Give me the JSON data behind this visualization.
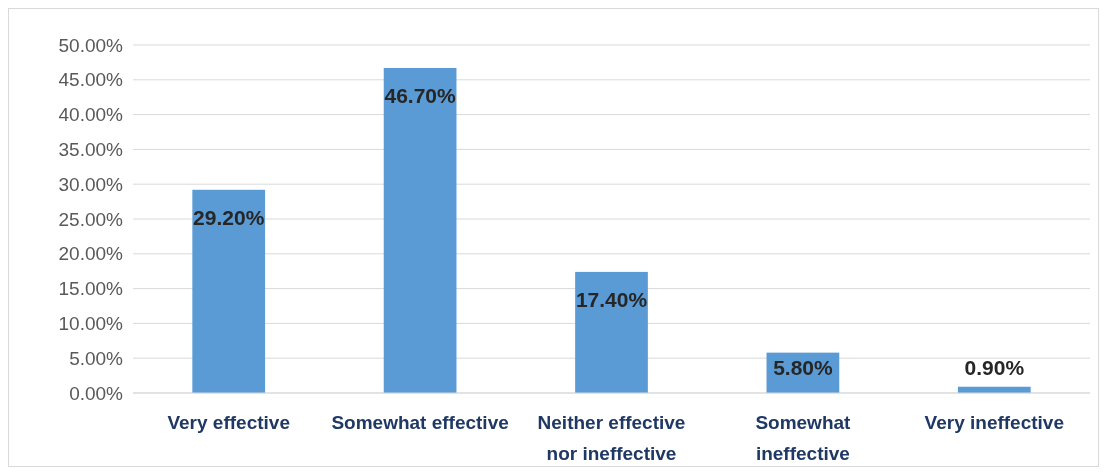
{
  "chart_data": {
    "type": "bar",
    "categories": [
      "Very effective",
      "Somewhat effective",
      "Neither effective nor ineffective",
      "Somewhat ineffective",
      "Very ineffective"
    ],
    "values": [
      29.2,
      46.7,
      17.4,
      5.8,
      0.9
    ],
    "value_labels": [
      "29.20%",
      "46.70%",
      "17.40%",
      "5.80%",
      "0.90%"
    ],
    "color": "#5b9bd5",
    "ylim": [
      0,
      50
    ],
    "yticks": [
      {
        "value": 0,
        "label": "0.00%"
      },
      {
        "value": 5,
        "label": "5.00%"
      },
      {
        "value": 10,
        "label": "10.00%"
      },
      {
        "value": 15,
        "label": "15.00%"
      },
      {
        "value": 20,
        "label": "20.00%"
      },
      {
        "value": 25,
        "label": "25.00%"
      },
      {
        "value": 30,
        "label": "30.00%"
      },
      {
        "value": 35,
        "label": "35.00%"
      },
      {
        "value": 40,
        "label": "40.00%"
      },
      {
        "value": 45,
        "label": "45.00%"
      },
      {
        "value": 50,
        "label": "50.00%"
      }
    ],
    "grid": "y"
  }
}
